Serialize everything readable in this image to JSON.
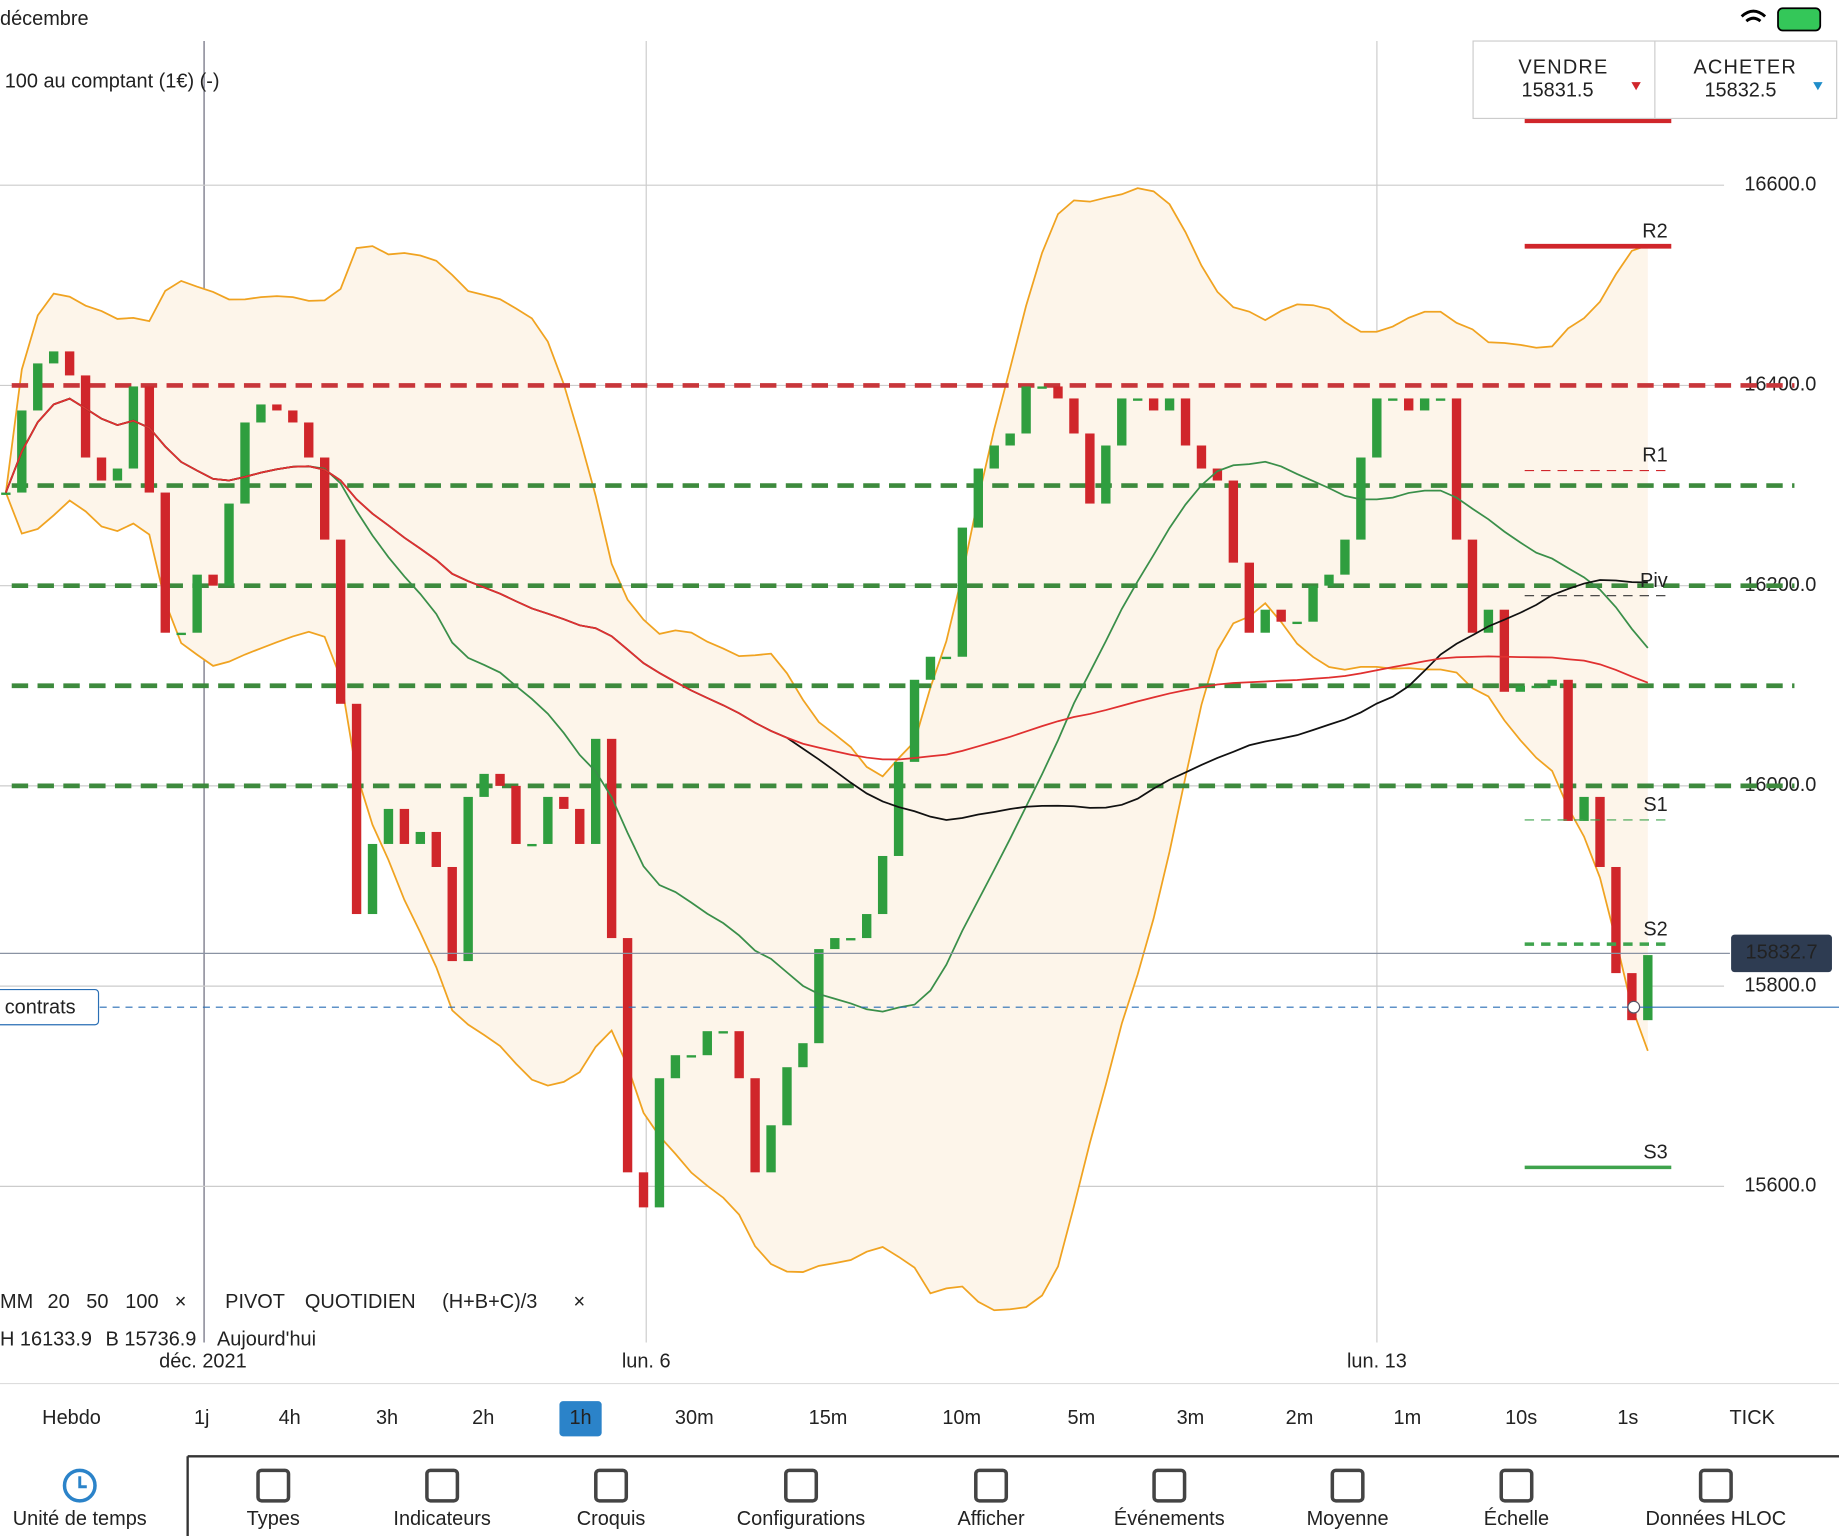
{
  "status_bar": {
    "title": "décembre"
  },
  "instrument": {
    "name": "100 au comptant (1€) (-)"
  },
  "trade_buttons": {
    "sell": {
      "label": "VENDRE",
      "price": "15831.5"
    },
    "buy": {
      "label": "ACHETER",
      "price": "15832.5"
    }
  },
  "chart_data": {
    "type": "candlestick",
    "values": [
      16293,
      16375,
      16422,
      16434,
      16410,
      16328,
      16305,
      16317,
      16399,
      16293,
      16153,
      16153,
      16211,
      16200,
      16282,
      16363,
      16381,
      16375,
      16363,
      16328,
      16246,
      16082,
      15872,
      15942,
      15977,
      15942,
      15954,
      15919,
      15825,
      15989,
      16012,
      16000,
      15942,
      15942,
      15989,
      15977,
      15942,
      16047,
      15848,
      15614,
      15579,
      15708,
      15731,
      15731,
      15755,
      15755,
      15708,
      15614,
      15661,
      15719,
      15743,
      15837,
      15848,
      15848,
      15872,
      15930,
      16024,
      16106,
      16129,
      16129,
      16258,
      16317,
      16340,
      16352,
      16399,
      16399,
      16387,
      16352,
      16282,
      16340,
      16387,
      16387,
      16375,
      16387,
      16340,
      16317,
      16305,
      16223,
      16153,
      16176,
      16164,
      16164,
      16200,
      16211,
      16246,
      16328,
      16387,
      16387,
      16375,
      16387,
      16387,
      16246,
      16153,
      16176,
      16094,
      16100,
      16100,
      16106,
      15965,
      15989,
      15919,
      15813,
      15766,
      15831
    ],
    "ylim": [
      15444,
      16744
    ],
    "yticks": [
      {
        "value": 16600,
        "label": "16600.0"
      },
      {
        "value": 16400,
        "label": "16400.0"
      },
      {
        "value": 16200,
        "label": "16200.0"
      },
      {
        "value": 16000,
        "label": "16000.0"
      },
      {
        "value": 15800,
        "label": "15800.0"
      },
      {
        "value": 15600,
        "label": "15600.0"
      }
    ],
    "current_price": 15832.7,
    "order_line": {
      "label": "contrats",
      "value": 15779
    },
    "pivots": {
      "labels": [
        "R2",
        "R1",
        "Piv",
        "S1",
        "S2",
        "S3"
      ],
      "values": [
        16539,
        16315,
        16190,
        15966,
        15842,
        15619
      ]
    },
    "levels": {
      "red": [
        16400
      ],
      "green": [
        16300,
        16200,
        16100,
        16000
      ]
    },
    "x_labels": [
      "déc. 2021",
      "lun. 6",
      "lun. 13"
    ]
  },
  "legend": {
    "moving_averages": [
      "MM",
      "20",
      "50",
      "100"
    ],
    "pivot": [
      "PIVOT",
      "QUOTIDIEN",
      "(H+B+C)/3"
    ],
    "info": [
      "H 16133.9",
      "B 15736.9",
      "Aujourd'hui"
    ]
  },
  "timeframes": {
    "items": [
      "Hebdo",
      "1j",
      "4h",
      "3h",
      "2h",
      "1h",
      "30m",
      "15m",
      "10m",
      "5m",
      "3m",
      "2m",
      "1m",
      "10s",
      "1s",
      "TICK"
    ],
    "selected": 5
  },
  "toolbar": {
    "items": [
      "Unité de temps",
      "Types",
      "Indicateurs",
      "Croquis",
      "Configurations",
      "Afficher",
      "Événements",
      "Moyenne",
      "Échelle",
      "Données HLOC"
    ],
    "selected": 0
  }
}
